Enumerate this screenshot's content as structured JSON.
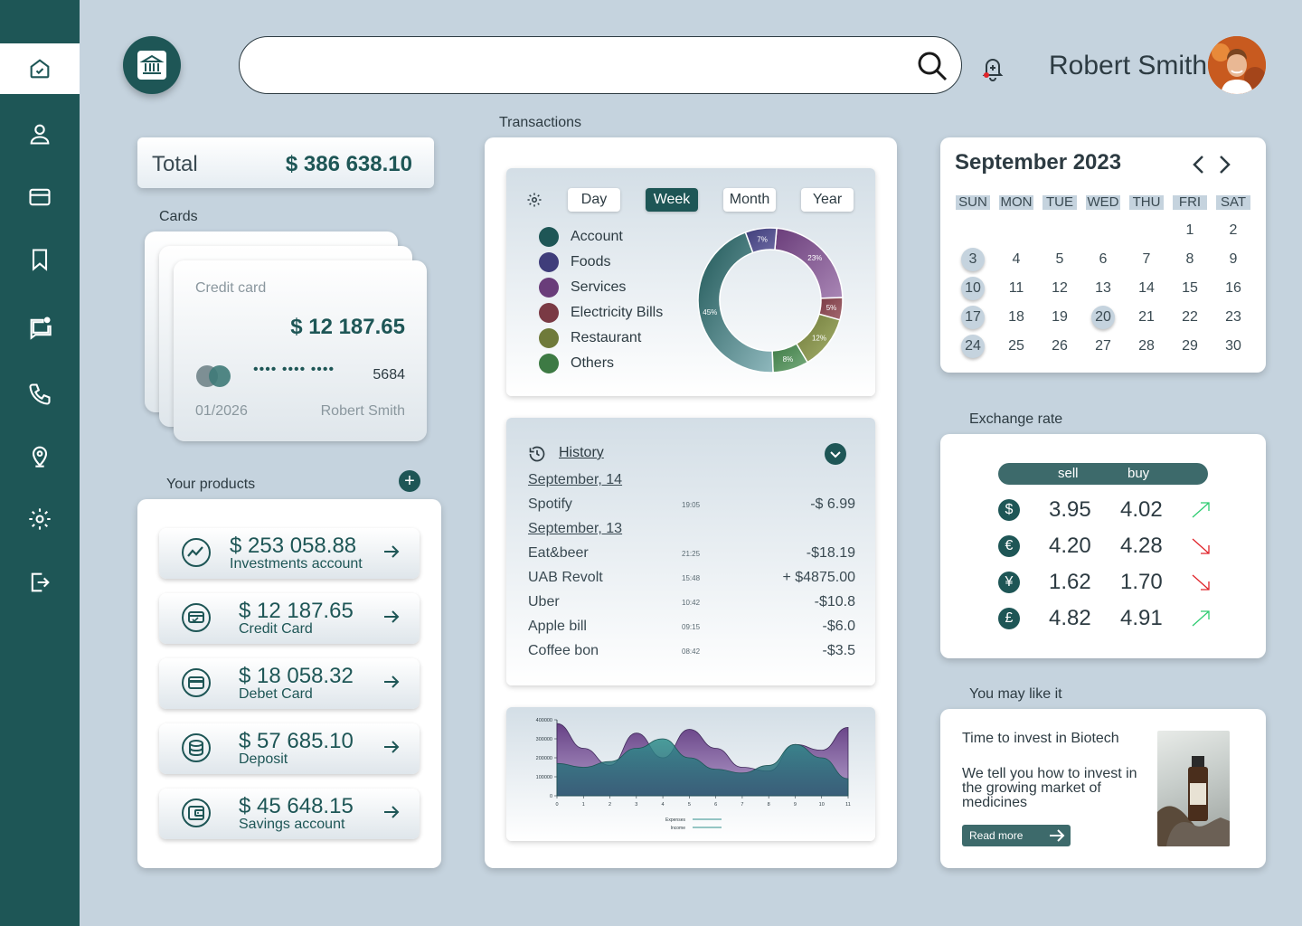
{
  "header": {
    "search": {
      "value": "",
      "placeholder": ""
    },
    "user_name": "Robert Smith"
  },
  "total": {
    "label": "Total",
    "value": "$ 386 638.10"
  },
  "cards": {
    "title": "Cards",
    "card": {
      "type_label": "Credit card",
      "amount": "$ 12 187.65",
      "masked": "•••• •••• ••••",
      "last4": "5684",
      "expiry": "01/2026",
      "holder": "Robert Smith"
    }
  },
  "products": {
    "title": "Your products",
    "items": [
      {
        "amount": "$ 253 058.88",
        "name": "Investments account",
        "icon": "chart-line-icon"
      },
      {
        "amount": "$ 12 187.65",
        "name": "Credit Card",
        "icon": "credit-card-icon"
      },
      {
        "amount": "$ 18 058.32",
        "name": "Debet Card",
        "icon": "debit-card-icon"
      },
      {
        "amount": "$ 57 685.10",
        "name": "Deposit",
        "icon": "coins-icon"
      },
      {
        "amount": "$ 45 648.15",
        "name": "Savings account",
        "icon": "wallet-icon"
      }
    ]
  },
  "transactions": {
    "title": "Transactions",
    "periods": [
      {
        "label": "Day",
        "active": false
      },
      {
        "label": "Week",
        "active": true
      },
      {
        "label": "Month",
        "active": false
      },
      {
        "label": "Year",
        "active": false
      }
    ],
    "legend": [
      {
        "label": "Account",
        "color": "#1e5656"
      },
      {
        "label": "Foods",
        "color": "#3f3d7a"
      },
      {
        "label": "Services",
        "color": "#6a3d7a"
      },
      {
        "label": "Electricity Bills",
        "color": "#7a3a44"
      },
      {
        "label": "Restaurant",
        "color": "#6f7a3a"
      },
      {
        "label": "Others",
        "color": "#3d7a44"
      }
    ],
    "donut": [
      {
        "label": "Account",
        "value": 45,
        "text": "45%"
      },
      {
        "label": "Foods",
        "value": 7,
        "text": "7%"
      },
      {
        "label": "Services",
        "value": 23,
        "text": "23%"
      },
      {
        "label": "Electricity Bills",
        "value": 5,
        "text": "5%"
      },
      {
        "label": "Restaurant",
        "value": 12,
        "text": "12%"
      },
      {
        "label": "Others",
        "value": 8,
        "text": "8%"
      }
    ],
    "history": {
      "title": "History",
      "groups": [
        {
          "date": "September, 14",
          "items": [
            {
              "name": "Spotify",
              "time": "19:05",
              "amount": "-$ 6.99"
            }
          ]
        },
        {
          "date": "September, 13",
          "items": [
            {
              "name": "Eat&beer",
              "time": "21:25",
              "amount": "-$18.19"
            },
            {
              "name": "UAB Revolt",
              "time": "15:48",
              "amount": "+ $4875.00"
            },
            {
              "name": "Uber",
              "time": "10:42",
              "amount": "-$10.8"
            },
            {
              "name": "Apple bill",
              "time": "09:15",
              "amount": "-$6.0"
            },
            {
              "name": "Coffee bon",
              "time": "08:42",
              "amount": "-$3.5"
            }
          ]
        }
      ]
    }
  },
  "chart_data": {
    "type": "area",
    "x": [
      0,
      1,
      2,
      3,
      4,
      5,
      6,
      7,
      8,
      9,
      10,
      11
    ],
    "xticks": [
      "0",
      "1",
      "2",
      "3",
      "4",
      "5",
      "6",
      "7",
      "8",
      "9",
      "10",
      "11"
    ],
    "yticks": [
      "0",
      "100000",
      "200000",
      "300000",
      "400000"
    ],
    "ylim": [
      0,
      400000
    ],
    "series": [
      {
        "name": "Expenses",
        "values": [
          380000,
          250000,
          160000,
          330000,
          200000,
          350000,
          250000,
          150000,
          130000,
          270000,
          240000,
          360000
        ]
      },
      {
        "name": "Income",
        "values": [
          170000,
          150000,
          180000,
          250000,
          300000,
          200000,
          140000,
          120000,
          160000,
          270000,
          200000,
          90000
        ]
      }
    ]
  },
  "calendar": {
    "title": "September 2023",
    "weekdays": [
      "SUN",
      "MON",
      "TUE",
      "WED",
      "THU",
      "FRI",
      "SAT"
    ],
    "first_weekday": 5,
    "days": 30,
    "highlighted": [
      3,
      10,
      17,
      20,
      24
    ]
  },
  "exchange": {
    "title": "Exchange rate",
    "sell_label": "sell",
    "buy_label": "buy",
    "rows": [
      {
        "symbol": "$",
        "sell": "3.95",
        "buy": "4.02",
        "trend": "up"
      },
      {
        "symbol": "€",
        "sell": "4.20",
        "buy": "4.28",
        "trend": "down"
      },
      {
        "symbol": "¥",
        "sell": "1.62",
        "buy": "1.70",
        "trend": "down"
      },
      {
        "symbol": "£",
        "sell": "4.82",
        "buy": "4.91",
        "trend": "up"
      }
    ]
  },
  "promo": {
    "section": "You may like it",
    "title": "Time to invest in Biotech",
    "text": "We tell you how to invest in the growing market of medicines",
    "button": "Read more"
  },
  "colors": {
    "primary": "#1e5656",
    "background": "#c5d3de",
    "trend_up": "#2ecc71",
    "trend_down": "#e0242a"
  }
}
